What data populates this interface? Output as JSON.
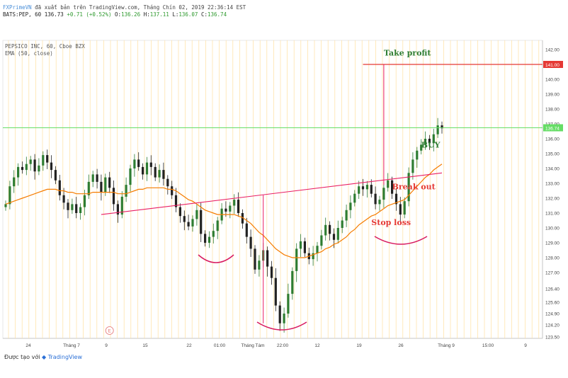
{
  "header": {
    "brand": "FXPrimeVN",
    "line1_rest": " đã xuất bản trên TradingView.com, Tháng Chín 02, 2019 22:36:14 EST",
    "symbol": "BATS:PEP, 60",
    "last": "136.73",
    "change": "+0.71 (+0.52%)",
    "o_label": "O:",
    "o": "136.26",
    "h_label": "H:",
    "h": "137.11",
    "l_label": "L:",
    "l": "136.07",
    "c_label": "C:",
    "c": "136.74"
  },
  "legend": {
    "title": "PEPSICO INC, 60, Cboe BZX",
    "indicator": "EMA (50, close)"
  },
  "footer": {
    "prefix": "Được tạo với",
    "brand": "TradingView"
  },
  "colors": {
    "up": "#2e7d32",
    "down": "#222222",
    "ema": "#f57c00",
    "neckline": "#e91e63",
    "take_profit_line": "#e53935",
    "current_line": "#66dd66",
    "grid_vertical": "#ffe0a0"
  },
  "chart_data": {
    "type": "candlestick",
    "symbol": "PEP",
    "timeframe": "60",
    "y_ticks": [
      142.0,
      141.0,
      140.0,
      139.0,
      138.0,
      137.0,
      136.0,
      135.0,
      134.0,
      133.0,
      132.0,
      131.0,
      130.0,
      129.0,
      128.0,
      127.0,
      126.4,
      125.6,
      124.9,
      124.2,
      123.5
    ],
    "y_tick_labels": [
      "142.00",
      "141.00",
      "140.00",
      "139.00",
      "138.00",
      "137.00",
      "136.00",
      "135.00",
      "134.00",
      "133.00",
      "132.00",
      "131.00",
      "130.00",
      "129.00",
      "128.00",
      "127.00",
      "126.40",
      "125.60",
      "124.90",
      "124.20",
      "123.50"
    ],
    "x_labels": [
      "24",
      "Tháng 7",
      "9",
      "15",
      "22",
      "01:00",
      "Tháng Tám",
      "22:00",
      "12",
      "19",
      "26",
      "Tháng 9",
      "15:00",
      "9"
    ],
    "price_tags": [
      {
        "value": 141.0,
        "label": "141.00",
        "color": "#e53935"
      },
      {
        "value": 136.74,
        "label": "136.74",
        "color": "#66dd66"
      }
    ],
    "close_path": [
      131.6,
      132.8,
      133.4,
      134.1,
      133.9,
      134.3,
      134.6,
      133.8,
      134.2,
      134.9,
      134.4,
      133.9,
      133.2,
      132.2,
      131.7,
      131.2,
      131.6,
      131.0,
      131.4,
      132.2,
      133.1,
      133.6,
      133.1,
      132.4,
      133.4,
      132.7,
      131.6,
      130.9,
      132.1,
      132.9,
      134.0,
      134.6,
      134.1,
      133.6,
      134.4,
      134.1,
      133.4,
      133.9,
      133.3,
      132.8,
      132.2,
      131.4,
      130.8,
      130.4,
      130.1,
      130.6,
      131.2,
      129.6,
      129.0,
      129.4,
      129.8,
      130.5,
      131.3,
      131.1,
      131.5,
      131.9,
      131.0,
      130.3,
      129.4,
      128.6,
      127.2,
      127.8,
      128.5,
      127.4,
      126.8,
      125.4,
      124.3,
      124.9,
      126.1,
      127.1,
      128.6,
      129.1,
      128.3,
      127.9,
      128.3,
      128.8,
      129.5,
      130.2,
      129.6,
      129.2,
      130.0,
      130.5,
      131.2,
      131.7,
      132.3,
      132.8,
      132.6,
      132.9,
      132.3,
      131.6,
      131.9,
      132.7,
      133.2,
      132.3,
      131.6,
      130.9,
      131.8,
      133.7,
      134.6,
      135.2,
      135.6,
      136.0,
      135.7,
      136.3,
      136.9,
      136.7
    ],
    "ema_50": [
      131.6,
      131.7,
      131.8,
      131.9,
      132.0,
      132.1,
      132.2,
      132.3,
      132.4,
      132.5,
      132.6,
      132.6,
      132.6,
      132.5,
      132.5,
      132.4,
      132.4,
      132.3,
      132.3,
      132.3,
      132.3,
      132.4,
      132.4,
      132.4,
      132.4,
      132.4,
      132.4,
      132.3,
      132.3,
      132.3,
      132.4,
      132.5,
      132.6,
      132.6,
      132.7,
      132.7,
      132.7,
      132.7,
      132.7,
      132.6,
      132.6,
      132.5,
      132.3,
      132.1,
      131.9,
      131.8,
      131.6,
      131.4,
      131.2,
      131.1,
      131.0,
      130.9,
      130.9,
      130.9,
      130.9,
      130.9,
      130.8,
      130.7,
      130.5,
      130.3,
      130.0,
      129.7,
      129.5,
      129.2,
      128.9,
      128.6,
      128.4,
      128.2,
      128.1,
      128.0,
      128.0,
      128.0,
      128.0,
      128.1,
      128.2,
      128.3,
      128.4,
      128.6,
      128.7,
      128.9,
      129.0,
      129.2,
      129.4,
      129.7,
      129.9,
      130.2,
      130.4,
      130.6,
      130.8,
      130.9,
      131.1,
      131.3,
      131.5,
      131.6,
      131.7,
      131.8,
      131.9,
      132.2,
      132.5,
      132.8,
      133.1,
      133.4,
      133.6,
      133.9,
      134.1,
      134.3
    ],
    "annotations": [
      {
        "text": "Take profit",
        "x_index": 91,
        "y": 141.6,
        "color": "#2e7d32"
      },
      {
        "text": "BUY",
        "x_index": 100,
        "y": 135.4,
        "color": "#2e7d32"
      },
      {
        "text": "Break out",
        "x_index": 93,
        "y": 132.6,
        "color": "#e53935"
      },
      {
        "text": "Stop loss",
        "x_index": 88,
        "y": 130.2,
        "color": "#e53935"
      }
    ],
    "neckline": {
      "from": [
        23,
        130.9
      ],
      "to": [
        105,
        133.7
      ]
    },
    "take_profit_level": {
      "value": 141.0,
      "from_index": 86,
      "to_index": 120
    },
    "target_verticals": [
      {
        "x_index": 62,
        "from": 132.2,
        "to": 124.3
      },
      {
        "x_index": 91,
        "from": 132.9,
        "to": 141.0
      }
    ],
    "e_marker": {
      "text": "E",
      "x_index": 25
    }
  }
}
